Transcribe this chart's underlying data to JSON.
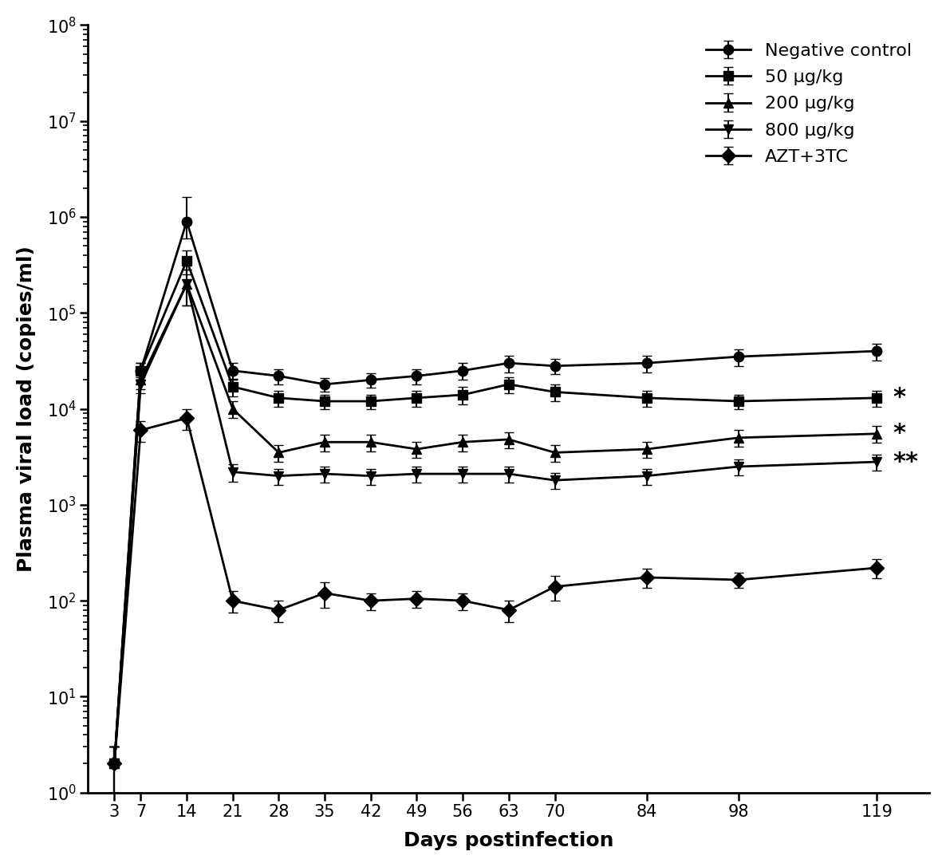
{
  "x_ticks": [
    3,
    7,
    14,
    21,
    28,
    35,
    42,
    49,
    56,
    63,
    70,
    84,
    98,
    119
  ],
  "series_order": [
    "Negative control",
    "50 ug/kg",
    "200 ug/kg",
    "800 ug/kg",
    "AZT+3TC"
  ],
  "series": {
    "Negative control": {
      "marker": "o",
      "y": [
        2,
        25000,
        900000,
        25000,
        22000,
        18000,
        20000,
        22000,
        25000,
        30000,
        28000,
        30000,
        35000,
        40000
      ],
      "yerr_low": [
        1,
        5000,
        300000,
        5000,
        4000,
        3000,
        3500,
        4000,
        5000,
        6000,
        5000,
        6000,
        7000,
        8000
      ],
      "yerr_high": [
        1,
        5000,
        700000,
        5000,
        4000,
        3000,
        3500,
        4000,
        5000,
        6000,
        5000,
        6000,
        7000,
        8000
      ],
      "label": "Negative control",
      "annotation": ""
    },
    "50 ug/kg": {
      "marker": "s",
      "y": [
        2,
        25000,
        350000,
        17000,
        13000,
        12000,
        12000,
        13000,
        14000,
        18000,
        15000,
        13000,
        12000,
        13000
      ],
      "yerr_low": [
        1,
        5000,
        100000,
        3500,
        2500,
        2000,
        2000,
        2500,
        2800,
        3500,
        3000,
        2500,
        2000,
        2500
      ],
      "yerr_high": [
        1,
        5000,
        100000,
        3500,
        2500,
        2000,
        2000,
        2500,
        2800,
        3500,
        3000,
        2500,
        2000,
        2500
      ],
      "label": "50 μg/kg",
      "annotation": "*"
    },
    "200 ug/kg": {
      "marker": "^",
      "y": [
        2,
        20000,
        200000,
        10000,
        3500,
        4500,
        4500,
        3800,
        4500,
        4800,
        3500,
        3800,
        5000,
        5500
      ],
      "yerr_low": [
        1,
        4000,
        80000,
        2000,
        700,
        900,
        900,
        700,
        900,
        900,
        700,
        700,
        1000,
        1100
      ],
      "yerr_high": [
        1,
        4000,
        80000,
        2000,
        700,
        900,
        900,
        700,
        900,
        900,
        700,
        700,
        1000,
        1100
      ],
      "label": "200 μg/kg",
      "annotation": "*"
    },
    "800 ug/kg": {
      "marker": "v",
      "y": [
        2,
        18000,
        200000,
        2200,
        2000,
        2100,
        2000,
        2100,
        2100,
        2100,
        1800,
        2000,
        2500,
        2800
      ],
      "yerr_low": [
        1,
        3500,
        80000,
        450,
        380,
        400,
        380,
        400,
        400,
        400,
        350,
        380,
        480,
        540
      ],
      "yerr_high": [
        1,
        3500,
        80000,
        450,
        380,
        400,
        380,
        400,
        400,
        400,
        350,
        380,
        480,
        540
      ],
      "label": "800 μg/kg",
      "annotation": "**"
    },
    "AZT+3TC": {
      "marker": "D",
      "y": [
        2,
        6000,
        8000,
        100,
        80,
        120,
        100,
        105,
        100,
        80,
        140,
        175,
        165,
        220
      ],
      "yerr_low": [
        1,
        1500,
        2000,
        25,
        20,
        35,
        20,
        20,
        20,
        20,
        40,
        40,
        30,
        50
      ],
      "yerr_high": [
        1,
        1500,
        2000,
        25,
        20,
        35,
        20,
        20,
        20,
        20,
        40,
        40,
        30,
        50
      ],
      "label": "AZT+3TC",
      "annotation": ""
    }
  },
  "ylabel": "Plasma viral load (copies/ml)",
  "xlabel": "Days postinfection",
  "ylim_low": 1,
  "ylim_high": 100000000,
  "color": "black",
  "linewidth": 2.0,
  "markersize": 9,
  "capsize": 4,
  "annotation_keys": [
    "50 ug/kg",
    "200 ug/kg",
    "800 ug/kg"
  ],
  "annotation_values": [
    "*",
    "*",
    "**"
  ],
  "figwidth": 11.86,
  "figheight": 10.87,
  "dpi": 100
}
